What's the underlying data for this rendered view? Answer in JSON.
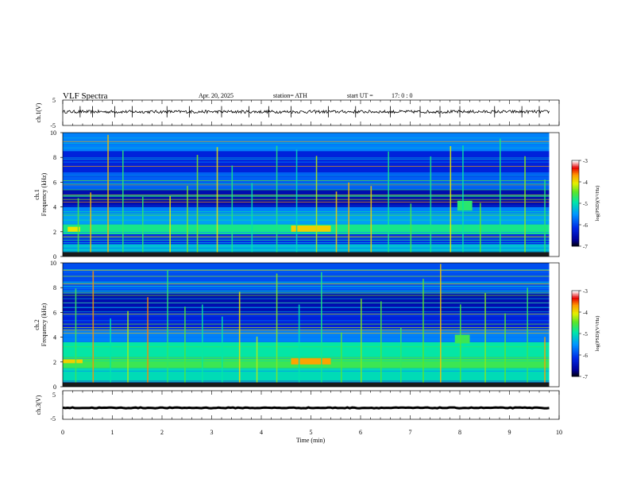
{
  "header": {
    "title": "VLF Spectra",
    "date": "Apr. 20, 2025",
    "station": "station= ATH",
    "start_label": "start  UT  =",
    "start_time": "17: 0  : 0"
  },
  "chart_data": [
    {
      "type": "line",
      "name": "ch1-waveform",
      "ylabel": "ch.1(V)",
      "ylim": [
        -5,
        5
      ],
      "yticks": [
        "5",
        "-5"
      ],
      "xlim": [
        0,
        10
      ],
      "x_end": 9.8,
      "baseline": 0.4,
      "noise_amplitude": 0.6,
      "spikes": [
        0.35,
        0.6,
        1.05,
        1.4,
        2.1,
        2.55,
        3.2,
        3.75,
        4.15,
        4.6,
        5.35,
        5.9,
        6.6,
        7.2,
        7.6,
        8.0,
        8.7,
        9.25,
        9.6
      ]
    },
    {
      "type": "heatmap",
      "name": "ch1-spectrogram",
      "title": "ch.1",
      "ylabel": "Frequency  (kHz)",
      "ylim": [
        0,
        10
      ],
      "yticks": [
        "0",
        "2",
        "4",
        "6",
        "8",
        "10"
      ],
      "xlim": [
        0,
        10
      ],
      "x_end": 9.8,
      "colorbar": {
        "label": "log(PSD)(V²/Hz)",
        "range": [
          -7,
          -3
        ],
        "ticks": [
          "-3",
          "-4",
          "-5",
          "-6",
          "-7"
        ]
      },
      "bands": [
        {
          "f0": 0.0,
          "f1": 0.4,
          "level": -6.6
        },
        {
          "f0": 0.4,
          "f1": 1.0,
          "level": -5.2
        },
        {
          "f0": 1.0,
          "f1": 1.8,
          "level": -6.1
        },
        {
          "f0": 1.8,
          "f1": 2.6,
          "level": -4.8
        },
        {
          "f0": 2.6,
          "f1": 3.4,
          "level": -5.4
        },
        {
          "f0": 3.4,
          "f1": 4.0,
          "level": -5.6
        },
        {
          "f0": 4.0,
          "f1": 5.4,
          "level": -6.5
        },
        {
          "f0": 5.4,
          "f1": 6.8,
          "level": -5.8
        },
        {
          "f0": 6.8,
          "f1": 8.5,
          "level": -6.2
        },
        {
          "f0": 8.5,
          "f1": 10.0,
          "level": -5.6
        }
      ],
      "events": [
        {
          "t0": 4.6,
          "t1": 5.4,
          "f0": 2.0,
          "f1": 2.5,
          "level": -3.9
        },
        {
          "t0": 7.95,
          "t1": 8.25,
          "f0": 3.7,
          "f1": 4.5,
          "level": -4.7
        },
        {
          "t0": 0.1,
          "t1": 0.35,
          "f0": 2.0,
          "f1": 2.4,
          "level": -4.0
        }
      ],
      "spikes": [
        0.3,
        0.55,
        0.9,
        1.2,
        1.6,
        2.15,
        2.5,
        2.7,
        3.1,
        3.4,
        3.8,
        4.3,
        4.7,
        5.1,
        5.5,
        5.75,
        6.2,
        6.55,
        7.0,
        7.4,
        7.8,
        8.05,
        8.4,
        8.8,
        9.3,
        9.7
      ]
    },
    {
      "type": "heatmap",
      "name": "ch2-spectrogram",
      "title": "ch.2",
      "ylabel": "Frequency  (kHz)",
      "ylim": [
        0,
        10
      ],
      "yticks": [
        "0",
        "2",
        "4",
        "6",
        "8",
        "10"
      ],
      "xlim": [
        0,
        10
      ],
      "x_end": 9.8,
      "colorbar": {
        "label": "log(PSD)(V²/Hz)",
        "range": [
          -7,
          -3
        ],
        "ticks": [
          "-3",
          "-4",
          "-5",
          "-6",
          "-7"
        ]
      },
      "bands": [
        {
          "f0": 0.0,
          "f1": 0.5,
          "level": -5.6
        },
        {
          "f0": 0.5,
          "f1": 1.5,
          "level": -5.0
        },
        {
          "f0": 1.5,
          "f1": 2.4,
          "level": -4.6
        },
        {
          "f0": 2.4,
          "f1": 3.6,
          "level": -4.9
        },
        {
          "f0": 3.6,
          "f1": 4.6,
          "level": -5.6
        },
        {
          "f0": 4.6,
          "f1": 6.0,
          "level": -6.2
        },
        {
          "f0": 6.0,
          "f1": 7.5,
          "level": -6.5
        },
        {
          "f0": 7.5,
          "f1": 10.0,
          "level": -5.9
        }
      ],
      "events": [
        {
          "t0": 4.6,
          "t1": 5.4,
          "f0": 1.8,
          "f1": 2.3,
          "level": -3.7
        },
        {
          "t0": 7.9,
          "t1": 8.2,
          "f0": 3.5,
          "f1": 4.2,
          "level": -4.6
        },
        {
          "t0": 0.0,
          "t1": 0.4,
          "f0": 1.9,
          "f1": 2.2,
          "level": -3.9
        }
      ],
      "spikes": [
        0.25,
        0.6,
        0.95,
        1.3,
        1.7,
        2.1,
        2.45,
        2.8,
        3.2,
        3.55,
        3.9,
        4.3,
        4.75,
        5.2,
        5.6,
        6.0,
        6.4,
        6.8,
        7.25,
        7.6,
        8.0,
        8.5,
        8.9,
        9.35,
        9.7
      ]
    },
    {
      "type": "line",
      "name": "ch3-waveform",
      "ylabel": "ch.3(V)",
      "ylim": [
        -5,
        5
      ],
      "yticks": [
        "5",
        "-5"
      ],
      "xlim": [
        0,
        10
      ],
      "x_end": 9.8,
      "baseline": -1.0,
      "noise_amplitude": 0.15
    }
  ],
  "xaxis": {
    "label": "Time  (min)",
    "ticks": [
      "0",
      "1",
      "2",
      "3",
      "4",
      "5",
      "6",
      "7",
      "8",
      "9",
      "10"
    ]
  }
}
